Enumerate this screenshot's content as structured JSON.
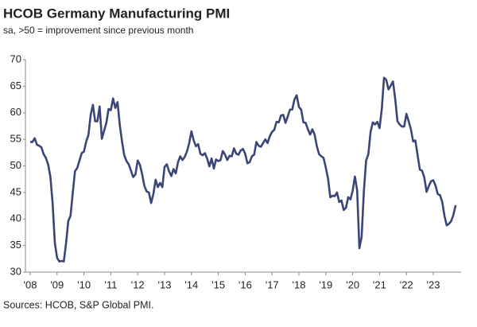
{
  "chart_data": {
    "type": "line",
    "title": "HCOB Germany Manufacturing PMI",
    "subtitle": "sa, >50 = improvement since previous month",
    "source": "Sources: HCOB, S&P Global PMI.",
    "categories": [
      "'08",
      null,
      null,
      null,
      null,
      null,
      null,
      null,
      null,
      null,
      null,
      null,
      "'09",
      null,
      null,
      null,
      null,
      null,
      null,
      null,
      null,
      null,
      null,
      null,
      "'10",
      null,
      null,
      null,
      null,
      null,
      null,
      null,
      null,
      null,
      null,
      null,
      "'11",
      null,
      null,
      null,
      null,
      null,
      null,
      null,
      null,
      null,
      null,
      null,
      "'12",
      null,
      null,
      null,
      null,
      null,
      null,
      null,
      null,
      null,
      null,
      null,
      "'13",
      null,
      null,
      null,
      null,
      null,
      null,
      null,
      null,
      null,
      null,
      null,
      "'14",
      null,
      null,
      null,
      null,
      null,
      null,
      null,
      null,
      null,
      null,
      null,
      "'15",
      null,
      null,
      null,
      null,
      null,
      null,
      null,
      null,
      null,
      null,
      null,
      "'16",
      null,
      null,
      null,
      null,
      null,
      null,
      null,
      null,
      null,
      null,
      null,
      "'17",
      null,
      null,
      null,
      null,
      null,
      null,
      null,
      null,
      null,
      null,
      null,
      "'18",
      null,
      null,
      null,
      null,
      null,
      null,
      null,
      null,
      null,
      null,
      null,
      "'19",
      null,
      null,
      null,
      null,
      null,
      null,
      null,
      null,
      null,
      null,
      null,
      "'20",
      null,
      null,
      null,
      null,
      null,
      null,
      null,
      null,
      null,
      null,
      null,
      "'21",
      null,
      null,
      null,
      null,
      null,
      null,
      null,
      null,
      null,
      null,
      null,
      "'22",
      null,
      null,
      null,
      null,
      null,
      null,
      null,
      null,
      null,
      null,
      null,
      "'23",
      null,
      null,
      null,
      null,
      null,
      null,
      null,
      null,
      null,
      null
    ],
    "series": [
      {
        "name": "HCOB Germany Manufacturing PMI",
        "color": "#3b4677",
        "values": [
          54.5,
          54.5,
          55.2,
          54.0,
          53.8,
          53.5,
          52.2,
          51.5,
          50.3,
          48.0,
          43.0,
          35.5,
          32.7,
          32.0,
          32.1,
          32.0,
          35.4,
          39.6,
          40.6,
          44.9,
          49.0,
          49.6,
          51.0,
          52.4,
          52.7,
          54.6,
          55.8,
          59.6,
          61.5,
          58.4,
          58.4,
          61.2,
          55.1,
          56.6,
          58.1,
          60.7,
          60.5,
          62.7,
          60.9,
          62.0,
          57.7,
          54.6,
          52.0,
          50.9,
          50.3,
          49.1,
          47.9,
          48.4,
          51.0,
          50.2,
          48.4,
          46.2,
          45.2,
          45.0,
          43.0,
          44.7,
          47.4,
          46.0,
          46.8,
          46.0,
          49.8,
          50.3,
          49.0,
          48.1,
          49.4,
          48.6,
          50.7,
          51.8,
          51.1,
          51.7,
          52.7,
          54.3,
          56.5,
          54.8,
          53.7,
          54.1,
          52.3,
          52.0,
          52.4,
          51.4,
          49.9,
          51.4,
          49.5,
          51.2,
          50.9,
          51.1,
          52.8,
          52.1,
          51.1,
          51.9,
          51.8,
          53.3,
          52.3,
          52.1,
          52.9,
          53.2,
          52.3,
          50.5,
          50.7,
          51.8,
          52.1,
          54.5,
          53.8,
          53.6,
          54.3,
          55.0,
          54.3,
          55.6,
          56.4,
          56.8,
          58.3,
          58.2,
          59.5,
          59.6,
          58.1,
          59.3,
          60.6,
          60.6,
          62.5,
          63.3,
          61.1,
          60.6,
          58.2,
          58.1,
          56.9,
          55.9,
          56.9,
          55.9,
          53.7,
          52.2,
          51.8,
          51.5,
          49.7,
          47.6,
          44.1,
          44.4,
          44.3,
          45.0,
          43.2,
          43.5,
          41.7,
          42.1,
          44.1,
          43.7,
          45.3,
          48.0,
          45.4,
          34.5,
          36.6,
          45.2,
          51.0,
          52.2,
          56.4,
          58.2,
          57.8,
          58.3,
          57.1,
          60.7,
          66.6,
          66.2,
          64.4,
          65.1,
          65.9,
          62.6,
          58.4,
          57.8,
          57.4,
          57.4,
          59.8,
          58.4,
          56.9,
          54.6,
          54.8,
          52.0,
          49.3,
          49.1,
          47.8,
          45.1,
          46.2,
          47.1,
          47.3,
          46.3,
          44.7,
          44.5,
          43.2,
          40.6,
          38.8,
          39.1,
          39.6,
          40.8,
          42.6
        ]
      }
    ],
    "ylim": [
      30,
      70
    ],
    "yticks": [
      30,
      35,
      40,
      45,
      50,
      55,
      60,
      65,
      70
    ],
    "grid": false
  }
}
